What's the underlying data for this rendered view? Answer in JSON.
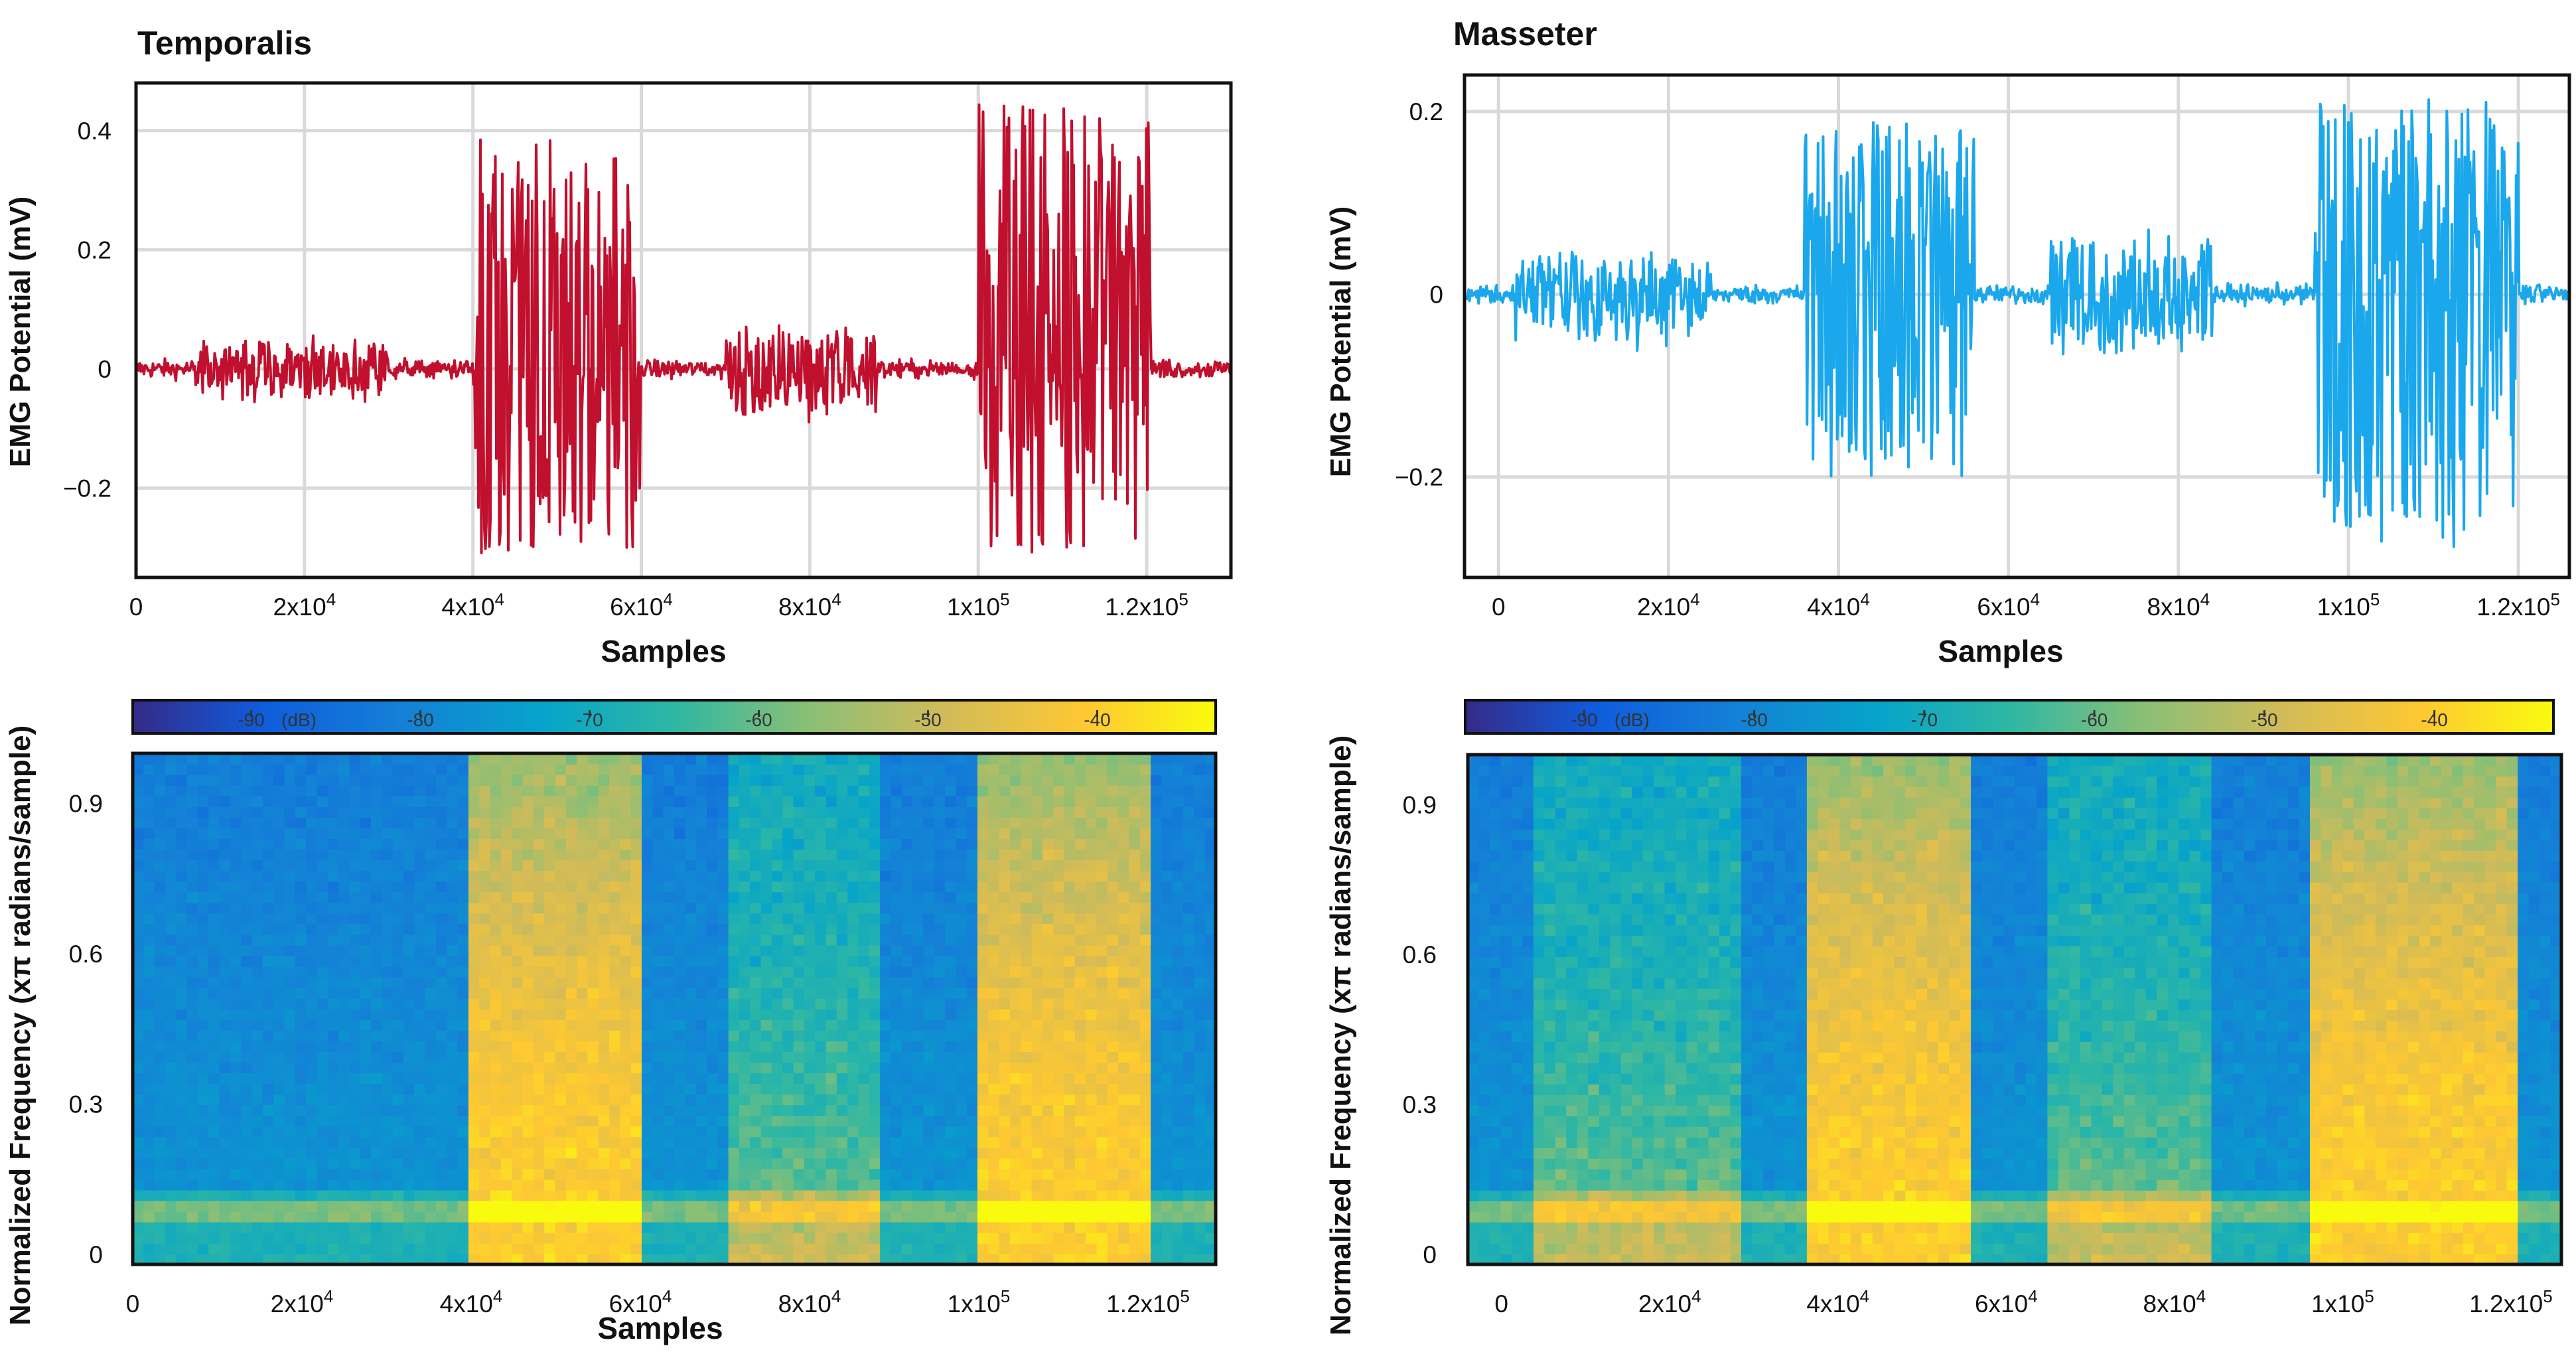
{
  "chart_data": [
    {
      "type": "line",
      "panel": "top-left",
      "title": "Temporalis",
      "xlabel": "Samples",
      "ylabel": "EMG Potential (mV)",
      "color": "#c0102e",
      "xlim": [
        0,
        130000
      ],
      "ylim": [
        -0.35,
        0.48
      ],
      "xticks": [
        0,
        20000,
        40000,
        60000,
        80000,
        100000,
        120000
      ],
      "xtick_labels": [
        "0",
        "2x10^4",
        "4x10^4",
        "6x10^4",
        "8x10^4",
        "1x10^5",
        "1.2x10^5"
      ],
      "yticks": [
        -0.2,
        0,
        0.2,
        0.4
      ],
      "ytick_labels": [
        "−0.2",
        "0",
        "0.2",
        "0.4"
      ],
      "bursts": [
        {
          "start": 40000,
          "end": 60000,
          "peak_pos": 0.39,
          "peak_neg": -0.31
        },
        {
          "start": 100000,
          "end": 120500,
          "peak_pos": 0.45,
          "peak_neg": -0.31
        }
      ],
      "minor_bursts": [
        {
          "start": 7000,
          "end": 30000,
          "amp": 0.04
        },
        {
          "start": 70000,
          "end": 88000,
          "amp": 0.07
        }
      ],
      "baseline_noise": 0.015
    },
    {
      "type": "line",
      "panel": "top-right",
      "title": "Masseter",
      "xlabel": "Samples",
      "ylabel": "EMG Potential (mV)",
      "color": "#1aa7ec",
      "xlim": [
        -4000,
        126000
      ],
      "ylim": [
        -0.31,
        0.24
      ],
      "xticks": [
        0,
        20000,
        40000,
        60000,
        80000,
        100000,
        120000
      ],
      "xtick_labels": [
        "0",
        "2x10^4",
        "4x10^4",
        "6x10^4",
        "8x10^4",
        "1x10^5",
        "1.2x10^5"
      ],
      "yticks": [
        -0.2,
        0,
        0.2
      ],
      "ytick_labels": [
        "−0.2",
        "0",
        "0.2"
      ],
      "bursts": [
        {
          "start": 36000,
          "end": 56000,
          "peak_pos": 0.19,
          "peak_neg": -0.21
        },
        {
          "start": 96000,
          "end": 120000,
          "peak_pos": 0.215,
          "peak_neg": -0.28
        }
      ],
      "minor_bursts": [
        {
          "start": 2000,
          "end": 25000,
          "amp": 0.045
        },
        {
          "start": 65000,
          "end": 84000,
          "amp": 0.06
        }
      ],
      "baseline_noise": 0.01
    },
    {
      "type": "heatmap",
      "panel": "bottom-left",
      "title": "",
      "xlabel": "Samples",
      "ylabel": "Normalized Frequency (xπ radians/sample)",
      "xlim": [
        0,
        128000
      ],
      "ylim": [
        -0.02,
        1.0
      ],
      "xticks": [
        0,
        20000,
        40000,
        60000,
        80000,
        100000,
        120000
      ],
      "xtick_labels": [
        "0",
        "2x10^4",
        "4x10^4",
        "6x10^4",
        "8x10^4",
        "1x10^5",
        "1.2x10^5"
      ],
      "yticks": [
        0,
        0.3,
        0.6,
        0.9
      ],
      "ytick_labels": [
        "0",
        "0.3",
        "0.6",
        "0.9"
      ],
      "colorbar": {
        "label": "(dB)",
        "min": -97,
        "max": -33,
        "ticks": [
          -90,
          -80,
          -70,
          -60,
          -50,
          -40
        ],
        "tick_labels": [
          "-90",
          "-80",
          "-70",
          "-60",
          "-50",
          "-40"
        ]
      },
      "active_segments": [
        {
          "start": 39500,
          "end": 60500,
          "level_db": -45
        },
        {
          "start": 99500,
          "end": 120000,
          "level_db": -45
        }
      ],
      "minor_segments": [
        {
          "start": 70000,
          "end": 88000,
          "level_db": -62
        }
      ]
    },
    {
      "type": "heatmap",
      "panel": "bottom-right",
      "title": "",
      "xlabel": "",
      "ylabel": "Normalized Frequency (xπ radians/sample)",
      "xlim": [
        -4000,
        126000
      ],
      "ylim": [
        -0.02,
        1.0
      ],
      "xticks": [
        0,
        20000,
        40000,
        60000,
        80000,
        100000,
        120000
      ],
      "xtick_labels": [
        "0",
        "2x10^4",
        "4x10^4",
        "6x10^4",
        "8x10^4",
        "1x10^5",
        "1.2x10^5"
      ],
      "yticks": [
        0,
        0.3,
        0.6,
        0.9
      ],
      "ytick_labels": [
        "0",
        "0.3",
        "0.6",
        "0.9"
      ],
      "colorbar": {
        "label": "(dB)",
        "min": -97,
        "max": -33,
        "ticks": [
          -90,
          -80,
          -70,
          -60,
          -50,
          -40
        ],
        "tick_labels": [
          "-90",
          "-80",
          "-70",
          "-60",
          "-50",
          "-40"
        ]
      },
      "active_segments": [
        {
          "start": 36000,
          "end": 56000,
          "level_db": -45
        },
        {
          "start": 96000,
          "end": 121000,
          "level_db": -45
        }
      ],
      "minor_segments": [
        {
          "start": 4000,
          "end": 28000,
          "level_db": -60
        },
        {
          "start": 65000,
          "end": 84000,
          "level_db": -60
        }
      ]
    }
  ]
}
